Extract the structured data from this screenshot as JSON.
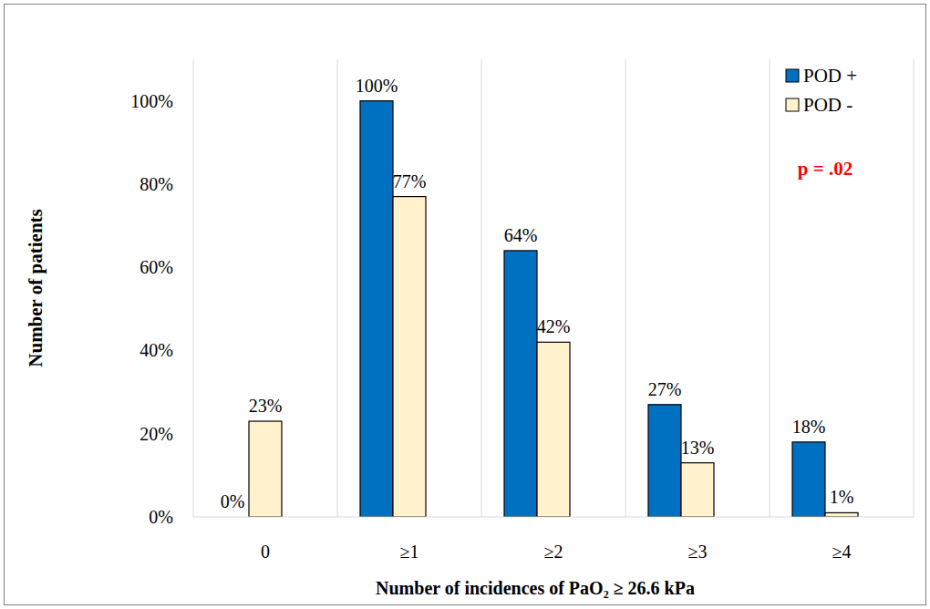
{
  "chart_data": {
    "type": "bar",
    "x_label": "Number of incidences of PaO₂ ≥ 26.6 kPa",
    "y_label": "Number of patients",
    "categories": [
      "0",
      "≥1",
      "≥2",
      "≥3",
      "≥4"
    ],
    "series": [
      {
        "name": "POD +",
        "color": "#0070c0",
        "values": [
          0,
          100,
          64,
          27,
          18
        ],
        "value_labels": [
          "0%",
          "100%",
          "64%",
          "27%",
          "18%"
        ]
      },
      {
        "name": "POD -",
        "color": "#fff2cc",
        "values": [
          23,
          77,
          42,
          13,
          1
        ],
        "value_labels": [
          "23%",
          "77%",
          "42%",
          "13%",
          "1%"
        ]
      }
    ],
    "ylim": [
      0,
      110
    ],
    "yticks": [
      {
        "value": 0,
        "label": "0%"
      },
      {
        "value": 20,
        "label": "20%"
      },
      {
        "value": 40,
        "label": "40%"
      },
      {
        "value": 60,
        "label": "60%"
      },
      {
        "value": 80,
        "label": "80%"
      },
      {
        "value": 100,
        "label": "100%"
      }
    ],
    "grid": false,
    "legend": "top-right",
    "data_labels": true,
    "annotations": [
      {
        "text": "p = .02",
        "color": "#ff0000"
      }
    ]
  }
}
